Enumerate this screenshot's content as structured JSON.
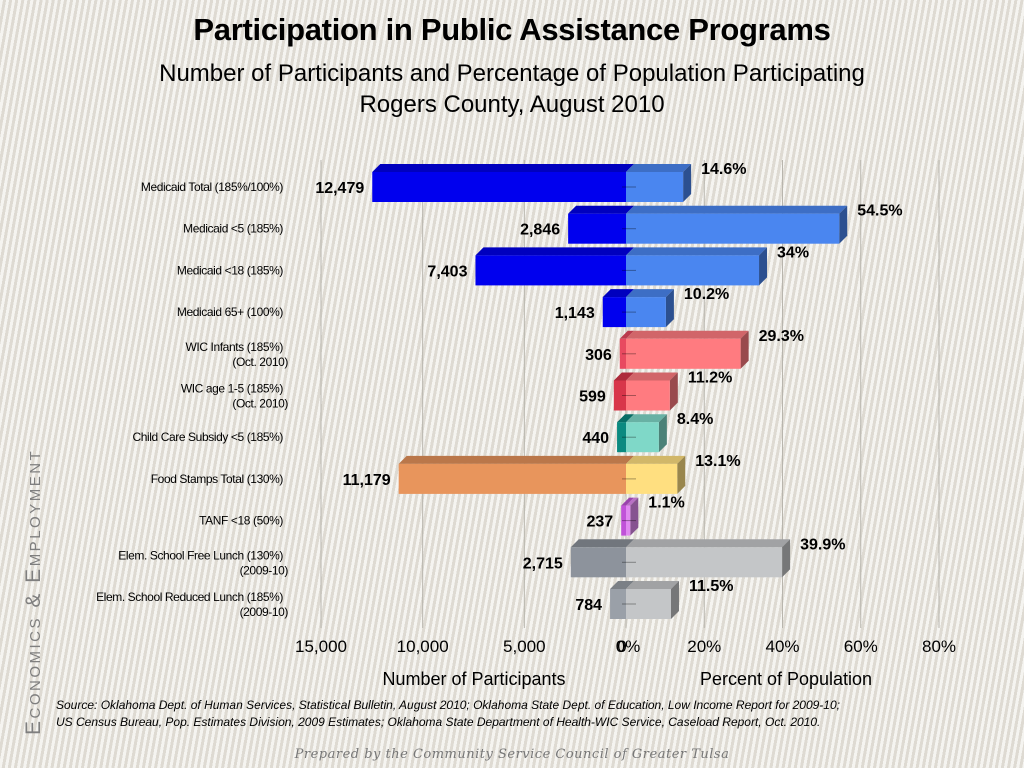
{
  "title": "Participation in Public Assistance Programs",
  "subtitle_line1": "Number of Participants and Percentage of Population Participating",
  "subtitle_line2": "Rogers County, August 2010",
  "side_label": "Economics & Employment",
  "source_line1": "Source:  Oklahoma Dept. of Human Services, Statistical Bulletin, August 2010; Oklahoma State Dept. of Education, Low Income Report for 2009-10;",
  "source_line2": "US Census Bureau, Pop. Estimates Division, 2009 Estimates; Oklahoma State Department of Health-WIC Service, Caseload Report, Oct. 2010.",
  "footer": "Prepared by the Community Service Council of Greater Tulsa",
  "chart_data": {
    "type": "bar",
    "orientation": "horizontal",
    "layout": "diverging-back-to-back",
    "categories": [
      [
        "Medicaid Total (185%/100%)"
      ],
      [
        "Medicaid <5 (185%)"
      ],
      [
        "Medicaid <18 (185%)"
      ],
      [
        "Medicaid 65+ (100%)"
      ],
      [
        "WIC Infants (185%)",
        "(Oct. 2010)"
      ],
      [
        "WIC age 1-5 (185%)",
        "(Oct. 2010)"
      ],
      [
        "Child Care Subsidy <5 (185%)"
      ],
      [
        "Food Stamps Total (130%)"
      ],
      [
        "TANF <18 (50%)"
      ],
      [
        "Elem. School Free Lunch (130%)",
        "(2009-10)"
      ],
      [
        "Elem. School Reduced Lunch (185%)",
        "(2009-10)"
      ]
    ],
    "participants": [
      12479,
      2846,
      7403,
      1143,
      306,
      599,
      440,
      11179,
      237,
      2715,
      784
    ],
    "participants_labels": [
      "12,479",
      "2,846",
      "7,403",
      "1,143",
      "306",
      "599",
      "440",
      "11,179",
      "237",
      "2,715",
      "784"
    ],
    "percent": [
      14.6,
      54.5,
      34,
      10.2,
      29.3,
      11.2,
      8.4,
      13.1,
      1.1,
      39.9,
      11.5
    ],
    "percent_labels": [
      "14.6%",
      "54.5%",
      "34%",
      "10.2%",
      "29.3%",
      "11.2%",
      "8.4%",
      "13.1%",
      "1.1%",
      "39.9%",
      "11.5%"
    ],
    "left_axis": {
      "xlabel": "Number of Participants",
      "xlim": [
        0,
        15000
      ],
      "ticks": [
        15000,
        10000,
        5000,
        0
      ],
      "tick_labels": [
        "15,000",
        "10,000",
        "5,000",
        "0"
      ]
    },
    "right_axis": {
      "xlabel": "Percent of Population",
      "xlim": [
        0,
        80
      ],
      "ticks": [
        0,
        20,
        40,
        60,
        80
      ],
      "tick_labels": [
        "0%",
        "20%",
        "40%",
        "60%",
        "80%"
      ]
    },
    "grid": true,
    "colors": {
      "participants": [
        "#0000ee",
        "#0000ee",
        "#0000ee",
        "#0000ee",
        "#e84a60",
        "#d8364a",
        "#0b8a80",
        "#e8955c",
        "#c052d8",
        "#8d939c",
        "#9aa0a8"
      ],
      "percent": [
        "#4a86f0",
        "#4a86f0",
        "#4a86f0",
        "#4a86f0",
        "#ff7b80",
        "#ff7b80",
        "#7fd8c8",
        "#ffdf80",
        "#e08af0",
        "#c4c6c8",
        "#c4c6c8"
      ]
    }
  }
}
